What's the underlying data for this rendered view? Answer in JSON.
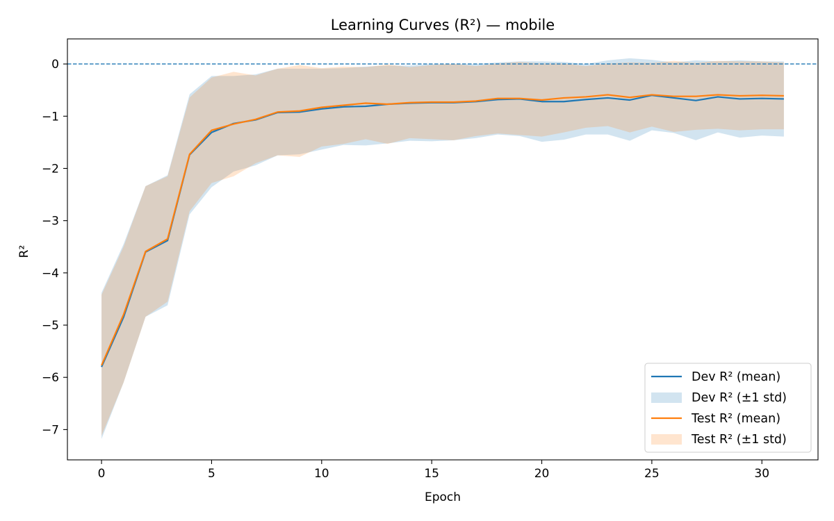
{
  "chart_data": {
    "type": "line",
    "title": "Learning Curves (R²) — mobile",
    "xlabel": "Epoch",
    "ylabel": "R²",
    "xlim": [
      -1.55,
      32.55
    ],
    "ylim": [
      -7.58,
      0.48
    ],
    "xticks": [
      0,
      5,
      10,
      15,
      20,
      25,
      30
    ],
    "yticks": [
      0,
      -1,
      -2,
      -3,
      -4,
      -5,
      -6,
      -7
    ],
    "xtick_labels": [
      "0",
      "5",
      "10",
      "15",
      "20",
      "25",
      "30"
    ],
    "ytick_labels": [
      "0",
      "−1",
      "−2",
      "−3",
      "−4",
      "−5",
      "−6",
      "−7"
    ],
    "grid": false,
    "legend_position": "lower-right",
    "reference_line": {
      "y": 0,
      "style": "dashed",
      "color": "#1f77b4"
    },
    "x": [
      0,
      1,
      2,
      3,
      4,
      5,
      6,
      7,
      8,
      9,
      10,
      11,
      12,
      13,
      14,
      15,
      16,
      17,
      18,
      19,
      20,
      21,
      22,
      23,
      24,
      25,
      26,
      27,
      28,
      29,
      30,
      31
    ],
    "series": [
      {
        "name": "Dev R² (mean)",
        "kind": "line",
        "color": "#1f77b4",
        "values": [
          -5.8,
          -4.85,
          -3.6,
          -3.38,
          -1.74,
          -1.31,
          -1.14,
          -1.07,
          -0.93,
          -0.92,
          -0.86,
          -0.82,
          -0.81,
          -0.77,
          -0.75,
          -0.74,
          -0.74,
          -0.72,
          -0.68,
          -0.67,
          -0.72,
          -0.72,
          -0.68,
          -0.65,
          -0.69,
          -0.6,
          -0.65,
          -0.7,
          -0.63,
          -0.67,
          -0.66,
          -0.67
        ]
      },
      {
        "name": "Dev R² (±1 std)",
        "kind": "band",
        "color": "#1f77b4",
        "opacity": 0.2,
        "lower": [
          -7.18,
          -6.1,
          -4.84,
          -4.62,
          -2.88,
          -2.36,
          -2.06,
          -1.94,
          -1.75,
          -1.73,
          -1.64,
          -1.55,
          -1.56,
          -1.52,
          -1.47,
          -1.48,
          -1.46,
          -1.42,
          -1.35,
          -1.38,
          -1.49,
          -1.45,
          -1.35,
          -1.35,
          -1.47,
          -1.27,
          -1.32,
          -1.46,
          -1.31,
          -1.41,
          -1.37,
          -1.39
        ],
        "upper": [
          -4.38,
          -3.45,
          -2.34,
          -2.13,
          -0.58,
          -0.23,
          -0.23,
          -0.2,
          -0.09,
          -0.09,
          -0.09,
          -0.08,
          -0.05,
          -0.03,
          -0.03,
          0.0,
          0.0,
          0.0,
          0.03,
          0.05,
          0.05,
          0.04,
          0.0,
          0.07,
          0.11,
          0.08,
          0.03,
          0.07,
          0.05,
          0.07,
          0.05,
          0.05
        ]
      },
      {
        "name": "Test R² (mean)",
        "kind": "line",
        "color": "#ff7f0e",
        "values": [
          -5.77,
          -4.8,
          -3.59,
          -3.35,
          -1.73,
          -1.27,
          -1.15,
          -1.06,
          -0.92,
          -0.9,
          -0.83,
          -0.79,
          -0.75,
          -0.77,
          -0.74,
          -0.73,
          -0.73,
          -0.71,
          -0.66,
          -0.66,
          -0.69,
          -0.65,
          -0.63,
          -0.59,
          -0.64,
          -0.59,
          -0.62,
          -0.62,
          -0.59,
          -0.61,
          -0.6,
          -0.61
        ]
      },
      {
        "name": "Test R² (±1 std)",
        "kind": "band",
        "color": "#ff7f0e",
        "opacity": 0.2,
        "lower": [
          -7.12,
          -6.1,
          -4.84,
          -4.55,
          -2.82,
          -2.28,
          -2.15,
          -1.9,
          -1.75,
          -1.78,
          -1.58,
          -1.53,
          -1.44,
          -1.53,
          -1.42,
          -1.44,
          -1.46,
          -1.38,
          -1.33,
          -1.36,
          -1.39,
          -1.31,
          -1.22,
          -1.19,
          -1.31,
          -1.2,
          -1.3,
          -1.26,
          -1.24,
          -1.27,
          -1.25,
          -1.25
        ]
      }
    ]
  }
}
